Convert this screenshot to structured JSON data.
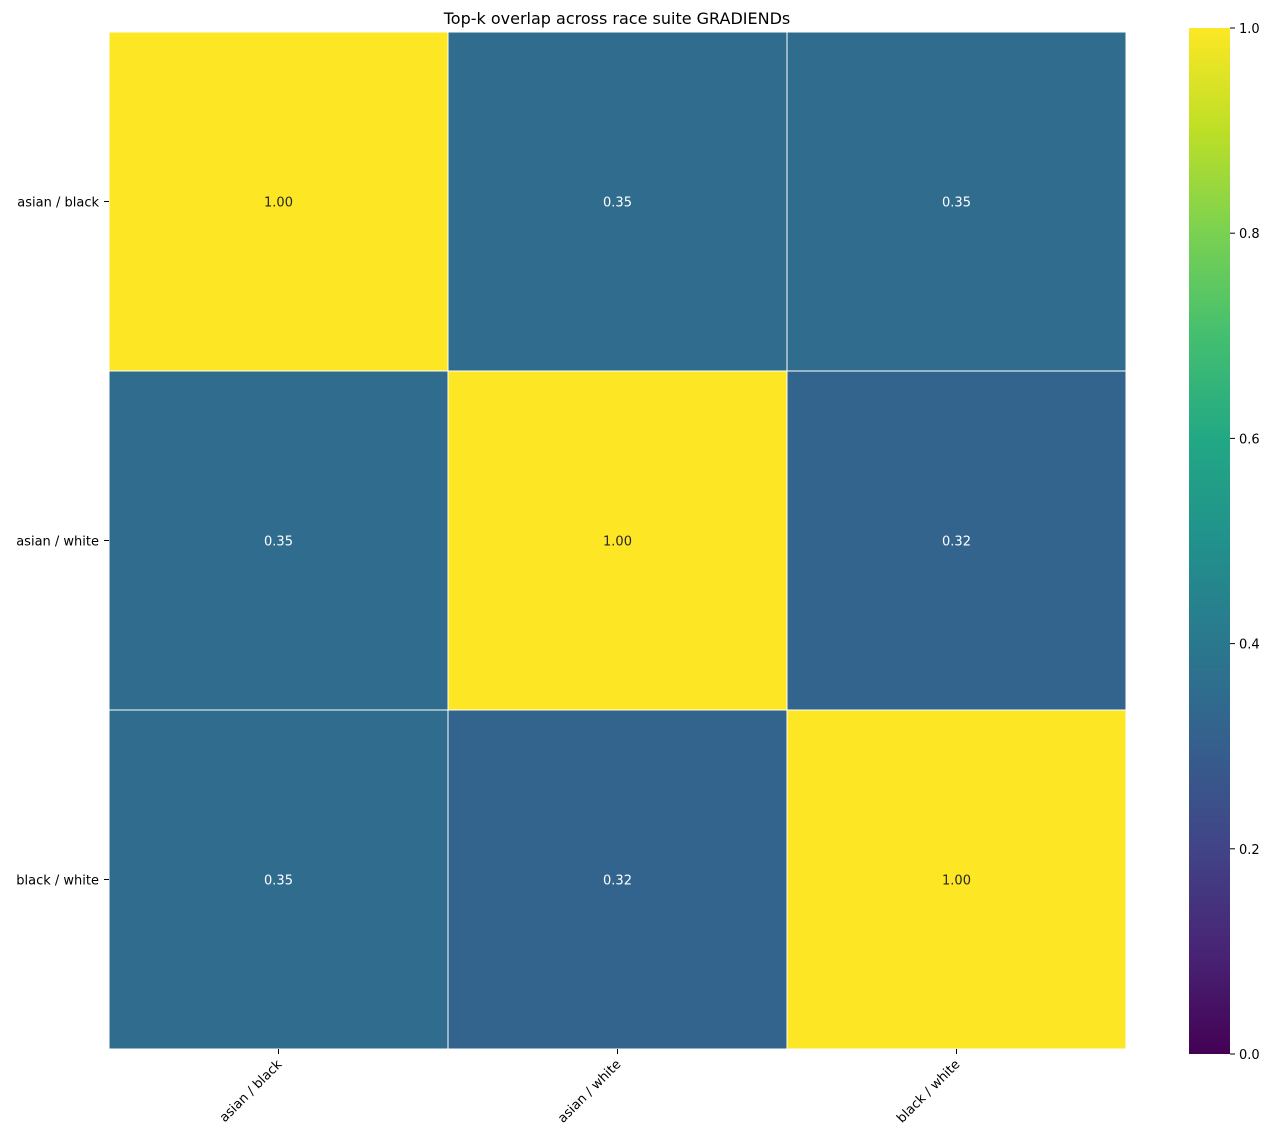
{
  "chart_data": {
    "type": "heatmap",
    "title": "Top-k overlap across race suite GRADIENDs",
    "row_labels": [
      "asian / black",
      "asian / white",
      "black / white"
    ],
    "col_labels": [
      "asian / black",
      "asian / white",
      "black / white"
    ],
    "values": [
      [
        1.0,
        0.35,
        0.35
      ],
      [
        0.35,
        1.0,
        0.32
      ],
      [
        0.35,
        0.32,
        1.0
      ]
    ],
    "value_format": "2 decimals",
    "colormap": "viridis",
    "vmin": 0.0,
    "vmax": 1.0,
    "colorbar_ticks": [
      "0.0",
      "0.2",
      "0.4",
      "0.6",
      "0.8",
      "1.0"
    ],
    "cell_text_colors": {
      "light_cells": "#262626",
      "dark_cells": "#ffffff"
    },
    "cell_border_color": "#ffffff",
    "x_tick_rotation_deg": 45,
    "legend": "colorbar right"
  }
}
